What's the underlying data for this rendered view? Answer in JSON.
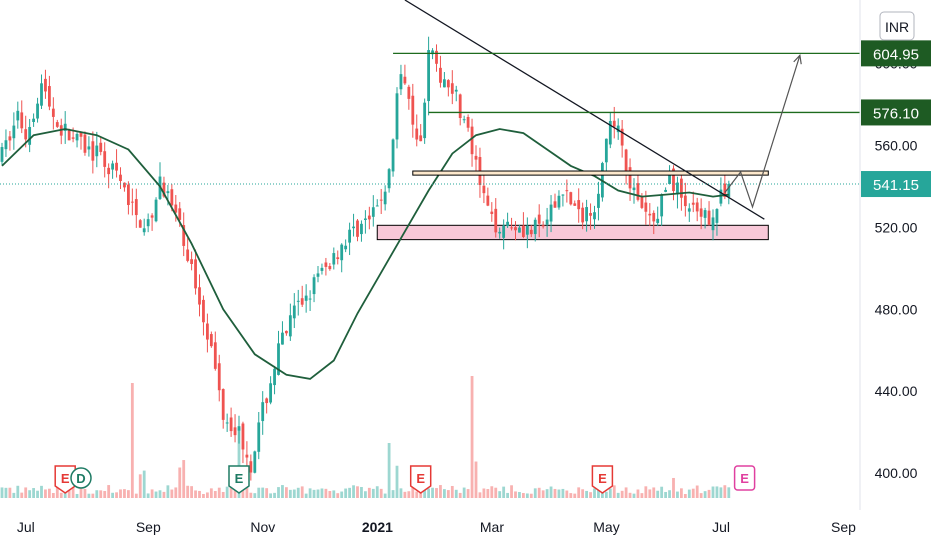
{
  "currency_badge": "INR",
  "colors": {
    "up": "#26a69a",
    "down": "#ef5350",
    "ma": "#1f5f3c",
    "target_line": "#1e6b1e",
    "target_label_bg": "#1e5b23",
    "current_price": "#26a69a",
    "support_zone": "#f8c8d8",
    "resistance_zone": "#fde8cc",
    "earnings_red": "#e53935",
    "earnings_green": "#1e7b64",
    "earnings_pink": "#e040a0"
  },
  "chart_data": {
    "type": "candlestick",
    "y_axis": {
      "ticks": [
        "400.00",
        "440.00",
        "480.00",
        "520.00",
        "560.00",
        "600.00"
      ],
      "tick_values": [
        400,
        440,
        480,
        520,
        560,
        600
      ],
      "range": [
        382,
        631
      ]
    },
    "x_axis": {
      "labels": [
        "Jul",
        "Sep",
        "Nov",
        "2021",
        "Mar",
        "May",
        "Jul",
        "Sep"
      ],
      "bold": [
        false,
        false,
        false,
        true,
        false,
        false,
        false,
        false
      ],
      "months": [
        "Jul 2020",
        "Sep 2020",
        "Nov 2020",
        "Jan 2021",
        "Mar 2021",
        "May 2021",
        "Jul 2021",
        "Sep 2021"
      ]
    },
    "price_labels": [
      {
        "text": "604.95",
        "value": 604.95,
        "kind": "target"
      },
      {
        "text": "576.10",
        "value": 576.1,
        "kind": "target"
      },
      {
        "text": "541.15",
        "value": 541.15,
        "kind": "current"
      }
    ],
    "price_path": [
      {
        "t": 0,
        "p": 555
      },
      {
        "t": 4,
        "p": 575
      },
      {
        "t": 6,
        "p": 565
      },
      {
        "t": 10,
        "p": 590
      },
      {
        "t": 14,
        "p": 570
      },
      {
        "t": 20,
        "p": 560
      },
      {
        "t": 24,
        "p": 555
      },
      {
        "t": 29,
        "p": 545
      },
      {
        "t": 34,
        "p": 525
      },
      {
        "t": 38,
        "p": 520
      },
      {
        "t": 40,
        "p": 545
      },
      {
        "t": 44,
        "p": 525
      },
      {
        "t": 48,
        "p": 500
      },
      {
        "t": 52,
        "p": 470
      },
      {
        "t": 56,
        "p": 430
      },
      {
        "t": 60,
        "p": 420
      },
      {
        "t": 63,
        "p": 405
      },
      {
        "t": 66,
        "p": 430
      },
      {
        "t": 70,
        "p": 460
      },
      {
        "t": 74,
        "p": 478
      },
      {
        "t": 78,
        "p": 490
      },
      {
        "t": 82,
        "p": 500
      },
      {
        "t": 86,
        "p": 512
      },
      {
        "t": 90,
        "p": 520
      },
      {
        "t": 94,
        "p": 525
      },
      {
        "t": 98,
        "p": 545
      },
      {
        "t": 100,
        "p": 585
      },
      {
        "t": 102,
        "p": 595
      },
      {
        "t": 104,
        "p": 575
      },
      {
        "t": 106,
        "p": 560
      },
      {
        "t": 108,
        "p": 610
      },
      {
        "t": 110,
        "p": 595
      },
      {
        "t": 114,
        "p": 590
      },
      {
        "t": 118,
        "p": 565
      },
      {
        "t": 121,
        "p": 540
      },
      {
        "t": 124,
        "p": 522
      },
      {
        "t": 130,
        "p": 522
      },
      {
        "t": 134,
        "p": 518
      },
      {
        "t": 138,
        "p": 522
      },
      {
        "t": 142,
        "p": 540
      },
      {
        "t": 146,
        "p": 525
      },
      {
        "t": 150,
        "p": 532
      },
      {
        "t": 154,
        "p": 568
      },
      {
        "t": 156,
        "p": 572
      },
      {
        "t": 158,
        "p": 550
      },
      {
        "t": 161,
        "p": 530
      },
      {
        "t": 165,
        "p": 522
      },
      {
        "t": 169,
        "p": 545
      },
      {
        "t": 173,
        "p": 532
      },
      {
        "t": 177,
        "p": 522
      },
      {
        "t": 181,
        "p": 530
      },
      {
        "t": 184,
        "p": 541
      }
    ],
    "moving_average": [
      {
        "t": 0,
        "p": 550
      },
      {
        "t": 8,
        "p": 565
      },
      {
        "t": 16,
        "p": 568
      },
      {
        "t": 24,
        "p": 565
      },
      {
        "t": 32,
        "p": 558
      },
      {
        "t": 40,
        "p": 540
      },
      {
        "t": 48,
        "p": 512
      },
      {
        "t": 56,
        "p": 480
      },
      {
        "t": 64,
        "p": 458
      },
      {
        "t": 72,
        "p": 448
      },
      {
        "t": 78,
        "p": 446
      },
      {
        "t": 84,
        "p": 455
      },
      {
        "t": 90,
        "p": 478
      },
      {
        "t": 96,
        "p": 498
      },
      {
        "t": 102,
        "p": 518
      },
      {
        "t": 108,
        "p": 538
      },
      {
        "t": 114,
        "p": 556
      },
      {
        "t": 120,
        "p": 565
      },
      {
        "t": 126,
        "p": 568
      },
      {
        "t": 132,
        "p": 566
      },
      {
        "t": 138,
        "p": 558
      },
      {
        "t": 144,
        "p": 550
      },
      {
        "t": 150,
        "p": 545
      },
      {
        "t": 156,
        "p": 538
      },
      {
        "t": 162,
        "p": 535
      },
      {
        "t": 168,
        "p": 536
      },
      {
        "t": 174,
        "p": 537
      },
      {
        "t": 180,
        "p": 535
      },
      {
        "t": 184,
        "p": 536
      }
    ],
    "annotations": {
      "trendline": {
        "from": {
          "t": 102,
          "p": 631
        },
        "to": {
          "t": 193,
          "p": 524
        }
      },
      "target_lines": [
        {
          "value": 604.95,
          "from_t": 99,
          "to_t": 215
        },
        {
          "value": 576.1,
          "from_t": 108,
          "to_t": 215
        }
      ],
      "resistance_zone": {
        "top": 547.5,
        "bottom": 545.5,
        "from_t": 104,
        "to_t": 194
      },
      "support_zone": {
        "top": 521,
        "bottom": 514,
        "from_t": 95,
        "to_t": 194
      },
      "projection": [
        {
          "t": 183,
          "p": 537
        },
        {
          "t": 187,
          "p": 547
        },
        {
          "t": 190,
          "p": 530
        },
        {
          "t": 202,
          "p": 604
        }
      ]
    },
    "earnings_markers": [
      {
        "t": 16,
        "label": "E",
        "color": "red"
      },
      {
        "t": 20,
        "label": "D",
        "color": "green-outline"
      },
      {
        "t": 60,
        "label": "E",
        "color": "green"
      },
      {
        "t": 106,
        "label": "E",
        "color": "red"
      },
      {
        "t": 152,
        "label": "E",
        "color": "red"
      },
      {
        "t": 188,
        "label": "E",
        "color": "pink-outline"
      }
    ]
  }
}
